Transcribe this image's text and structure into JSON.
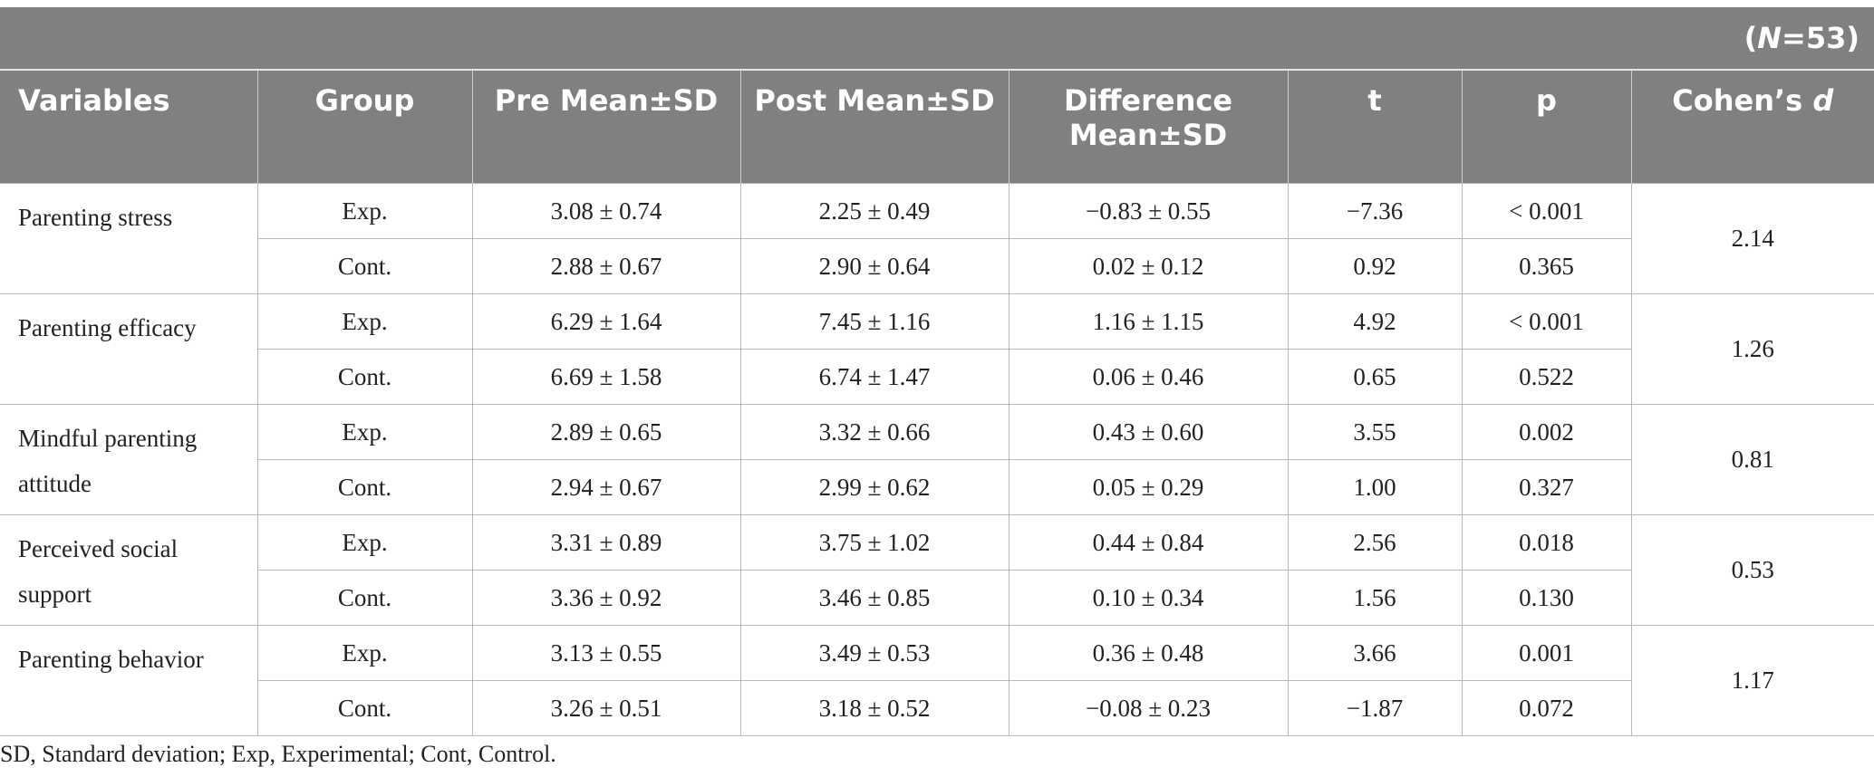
{
  "n_label_prefix": "(",
  "n_label_italic": "N",
  "n_label_suffix": "=53)",
  "headers": {
    "variables": "Variables",
    "group": "Group",
    "pre": "Pre Mean±SD",
    "post": "Post Mean±SD",
    "difference": "Difference Mean±SD",
    "t": "t",
    "p": "p",
    "cohens_prefix": "Cohen’s ",
    "cohens_italic": "d"
  },
  "rows": [
    {
      "variable": "Parenting stress",
      "cohens_d": "2.14",
      "exp": {
        "group": "Exp.",
        "pre": "3.08 ± 0.74",
        "post": "2.25 ± 0.49",
        "diff": "−0.83 ± 0.55",
        "t": "−7.36",
        "p": "< 0.001"
      },
      "cont": {
        "group": "Cont.",
        "pre": "2.88 ± 0.67",
        "post": "2.90 ± 0.64",
        "diff": "0.02 ± 0.12",
        "t": "0.92",
        "p": "0.365"
      }
    },
    {
      "variable": "Parenting efficacy",
      "cohens_d": "1.26",
      "exp": {
        "group": "Exp.",
        "pre": "6.29 ± 1.64",
        "post": "7.45 ± 1.16",
        "diff": "1.16 ± 1.15",
        "t": "4.92",
        "p": "< 0.001"
      },
      "cont": {
        "group": "Cont.",
        "pre": "6.69 ± 1.58",
        "post": "6.74 ± 1.47",
        "diff": "0.06 ± 0.46",
        "t": "0.65",
        "p": "0.522"
      }
    },
    {
      "variable": "Mindful parenting attitude",
      "cohens_d": "0.81",
      "exp": {
        "group": "Exp.",
        "pre": "2.89 ± 0.65",
        "post": "3.32 ± 0.66",
        "diff": "0.43 ± 0.60",
        "t": "3.55",
        "p": "0.002"
      },
      "cont": {
        "group": "Cont.",
        "pre": "2.94 ± 0.67",
        "post": "2.99 ± 0.62",
        "diff": "0.05 ± 0.29",
        "t": "1.00",
        "p": "0.327"
      }
    },
    {
      "variable": "Perceived social support",
      "cohens_d": "0.53",
      "exp": {
        "group": "Exp.",
        "pre": "3.31 ± 0.89",
        "post": "3.75 ± 1.02",
        "diff": "0.44 ± 0.84",
        "t": "2.56",
        "p": "0.018"
      },
      "cont": {
        "group": "Cont.",
        "pre": "3.36 ± 0.92",
        "post": "3.46 ± 0.85",
        "diff": "0.10 ± 0.34",
        "t": "1.56",
        "p": "0.130"
      }
    },
    {
      "variable": "Parenting behavior",
      "cohens_d": "1.17",
      "exp": {
        "group": "Exp.",
        "pre": "3.13 ± 0.55",
        "post": "3.49 ± 0.53",
        "diff": "0.36 ± 0.48",
        "t": "3.66",
        "p": "0.001"
      },
      "cont": {
        "group": "Cont.",
        "pre": "3.26 ± 0.51",
        "post": "3.18 ± 0.52",
        "diff": "−0.08 ± 0.23",
        "t": "−1.87",
        "p": "0.072"
      }
    }
  ],
  "footnote": "SD, Standard deviation; Exp, Experimental; Cont, Control.",
  "colors": {
    "header_bg": "#7f807f",
    "header_text": "#ffffff",
    "border": "#b9b9b9",
    "body_text": "#222222"
  }
}
